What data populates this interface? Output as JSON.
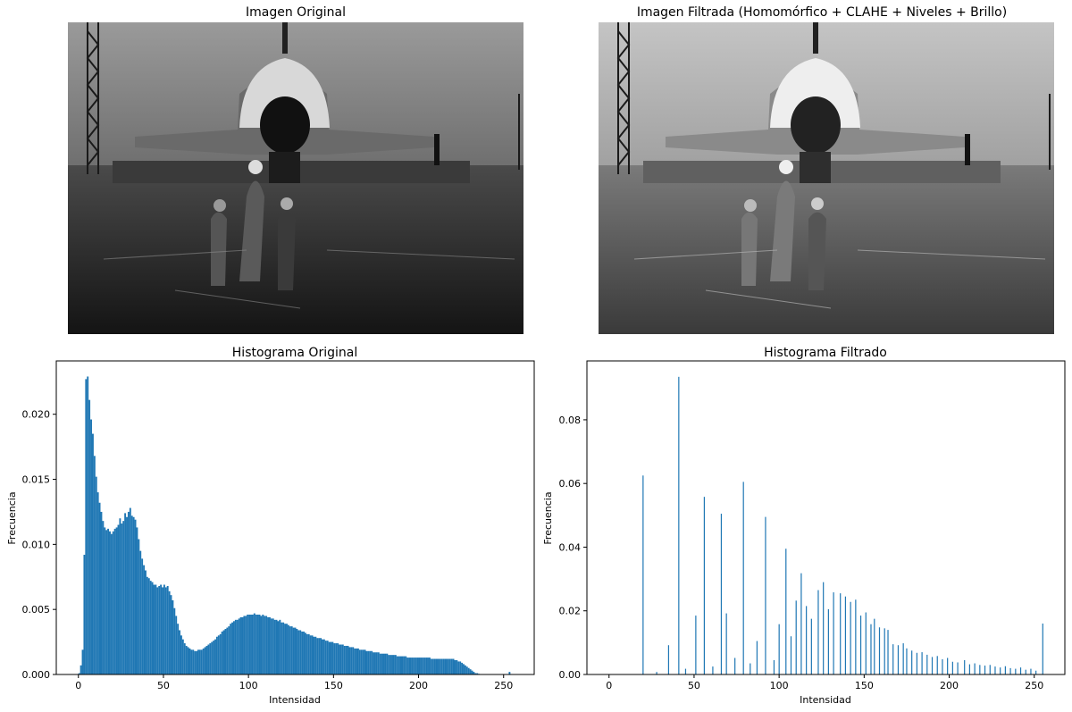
{
  "panels": {
    "top_left_title": "Imagen Original",
    "top_right_title": "Imagen Filtrada (Homomórfico + CLAHE + Niveles + Brillo)"
  },
  "colors": {
    "bar": "#1f77b4"
  },
  "chart_data": [
    {
      "type": "bar",
      "title": "Histograma Original",
      "xlabel": "Intensidad",
      "ylabel": "Frecuencia",
      "xlim": [
        -13,
        268
      ],
      "ylim": [
        0,
        0.0241
      ],
      "xticks": [
        0,
        50,
        100,
        150,
        200,
        250
      ],
      "yticks": [
        0.0,
        0.005,
        0.01,
        0.015,
        0.02
      ],
      "ytick_labels": [
        "0.000",
        "0.005",
        "0.010",
        "0.015",
        "0.020"
      ],
      "bin_width": 1,
      "values": [
        0.0001,
        0.0007,
        0.0019,
        0.0092,
        0.0227,
        0.0229,
        0.0211,
        0.0196,
        0.0185,
        0.0168,
        0.0152,
        0.014,
        0.0132,
        0.0125,
        0.0118,
        0.0113,
        0.0111,
        0.0112,
        0.011,
        0.0108,
        0.011,
        0.0112,
        0.0113,
        0.0115,
        0.012,
        0.0116,
        0.0118,
        0.0124,
        0.0121,
        0.0125,
        0.0128,
        0.0122,
        0.0121,
        0.0119,
        0.0113,
        0.0104,
        0.0095,
        0.0089,
        0.0084,
        0.008,
        0.0075,
        0.0074,
        0.0072,
        0.0071,
        0.0069,
        0.0069,
        0.0067,
        0.0068,
        0.0069,
        0.0067,
        0.0069,
        0.0067,
        0.0068,
        0.0064,
        0.0061,
        0.0057,
        0.0051,
        0.0045,
        0.0039,
        0.0034,
        0.003,
        0.0027,
        0.0024,
        0.0022,
        0.0021,
        0.002,
        0.0019,
        0.0019,
        0.0018,
        0.0018,
        0.0019,
        0.0019,
        0.0019,
        0.002,
        0.0021,
        0.0022,
        0.0023,
        0.0024,
        0.0025,
        0.0026,
        0.0027,
        0.0029,
        0.003,
        0.0031,
        0.0033,
        0.0034,
        0.0035,
        0.0036,
        0.0037,
        0.0039,
        0.004,
        0.0041,
        0.0042,
        0.0042,
        0.0043,
        0.0044,
        0.0044,
        0.0045,
        0.0045,
        0.0046,
        0.0046,
        0.0046,
        0.0046,
        0.0047,
        0.0046,
        0.0046,
        0.0046,
        0.0045,
        0.0046,
        0.0045,
        0.0045,
        0.0044,
        0.0044,
        0.0043,
        0.0043,
        0.0042,
        0.0042,
        0.0041,
        0.0042,
        0.004,
        0.004,
        0.0039,
        0.0039,
        0.0038,
        0.0037,
        0.0037,
        0.0036,
        0.0036,
        0.0035,
        0.0034,
        0.0034,
        0.0033,
        0.0033,
        0.0032,
        0.0031,
        0.0031,
        0.003,
        0.003,
        0.0029,
        0.0029,
        0.0028,
        0.0028,
        0.0028,
        0.0027,
        0.0027,
        0.0026,
        0.0026,
        0.0025,
        0.0025,
        0.0025,
        0.0024,
        0.0024,
        0.0024,
        0.0023,
        0.0023,
        0.0023,
        0.0022,
        0.0022,
        0.0022,
        0.0021,
        0.0021,
        0.0021,
        0.002,
        0.002,
        0.002,
        0.0019,
        0.0019,
        0.0019,
        0.0019,
        0.0018,
        0.0018,
        0.0018,
        0.0018,
        0.0017,
        0.0017,
        0.0017,
        0.0017,
        0.0016,
        0.0016,
        0.0016,
        0.0016,
        0.0016,
        0.0015,
        0.0015,
        0.0015,
        0.0015,
        0.0015,
        0.0014,
        0.0014,
        0.0014,
        0.0014,
        0.0014,
        0.0014,
        0.0013,
        0.0013,
        0.0013,
        0.0013,
        0.0013,
        0.0013,
        0.0013,
        0.0013,
        0.0013,
        0.0013,
        0.0013,
        0.0013,
        0.0013,
        0.0013,
        0.0012,
        0.0012,
        0.0012,
        0.0012,
        0.0012,
        0.0012,
        0.0012,
        0.0012,
        0.0012,
        0.0012,
        0.0012,
        0.0012,
        0.0012,
        0.0012,
        0.0011,
        0.0011,
        0.001,
        0.001,
        0.0009,
        0.0008,
        0.0007,
        0.0006,
        0.0005,
        0.0004,
        0.0003,
        0.0002,
        0.0001,
        0.0001,
        5e-05,
        3e-05,
        2e-05,
        1e-05,
        0,
        0,
        0,
        0,
        0,
        0,
        0,
        0,
        0,
        0,
        0,
        0,
        0,
        0,
        0.0002
      ]
    },
    {
      "type": "bar",
      "title": "Histograma Filtrado",
      "xlabel": "Intensidad",
      "ylabel": "Frecuencia",
      "xlim": [
        -13,
        268
      ],
      "ylim": [
        0,
        0.0985
      ],
      "xticks": [
        0,
        50,
        100,
        150,
        200,
        250
      ],
      "yticks": [
        0.0,
        0.02,
        0.04,
        0.06,
        0.08
      ],
      "ytick_labels": [
        "0.00",
        "0.02",
        "0.04",
        "0.06",
        "0.08"
      ],
      "bin_width": 0.6,
      "x": [
        20,
        28,
        35,
        41,
        45,
        51,
        56,
        61,
        66,
        69,
        74,
        79,
        83,
        87,
        92,
        97,
        100,
        104,
        107,
        110,
        113,
        116,
        119,
        123,
        126,
        129,
        132,
        136,
        139,
        142,
        145,
        148,
        151,
        154,
        156,
        159,
        162,
        164,
        167,
        170,
        173,
        175,
        178,
        181,
        184,
        187,
        190,
        193,
        196,
        199,
        202,
        205,
        209,
        212,
        215,
        218,
        221,
        224,
        227,
        230,
        233,
        236,
        239,
        242,
        245,
        248,
        251,
        255
      ],
      "values": [
        0.0625,
        0.0008,
        0.0092,
        0.0935,
        0.0018,
        0.0185,
        0.0558,
        0.0025,
        0.0505,
        0.0192,
        0.0052,
        0.0605,
        0.0035,
        0.0105,
        0.0495,
        0.0045,
        0.0158,
        0.0395,
        0.012,
        0.0232,
        0.0318,
        0.0215,
        0.0175,
        0.0265,
        0.029,
        0.0205,
        0.0258,
        0.0255,
        0.0245,
        0.0228,
        0.0235,
        0.0185,
        0.0195,
        0.0158,
        0.0175,
        0.0148,
        0.0145,
        0.014,
        0.0095,
        0.0092,
        0.0098,
        0.0082,
        0.0075,
        0.0068,
        0.007,
        0.0062,
        0.0055,
        0.0058,
        0.0048,
        0.0052,
        0.004,
        0.0038,
        0.0045,
        0.0032,
        0.0035,
        0.003,
        0.0028,
        0.003,
        0.0025,
        0.0022,
        0.0026,
        0.002,
        0.0018,
        0.0022,
        0.0015,
        0.0018,
        0.0012,
        0.016
      ]
    }
  ]
}
